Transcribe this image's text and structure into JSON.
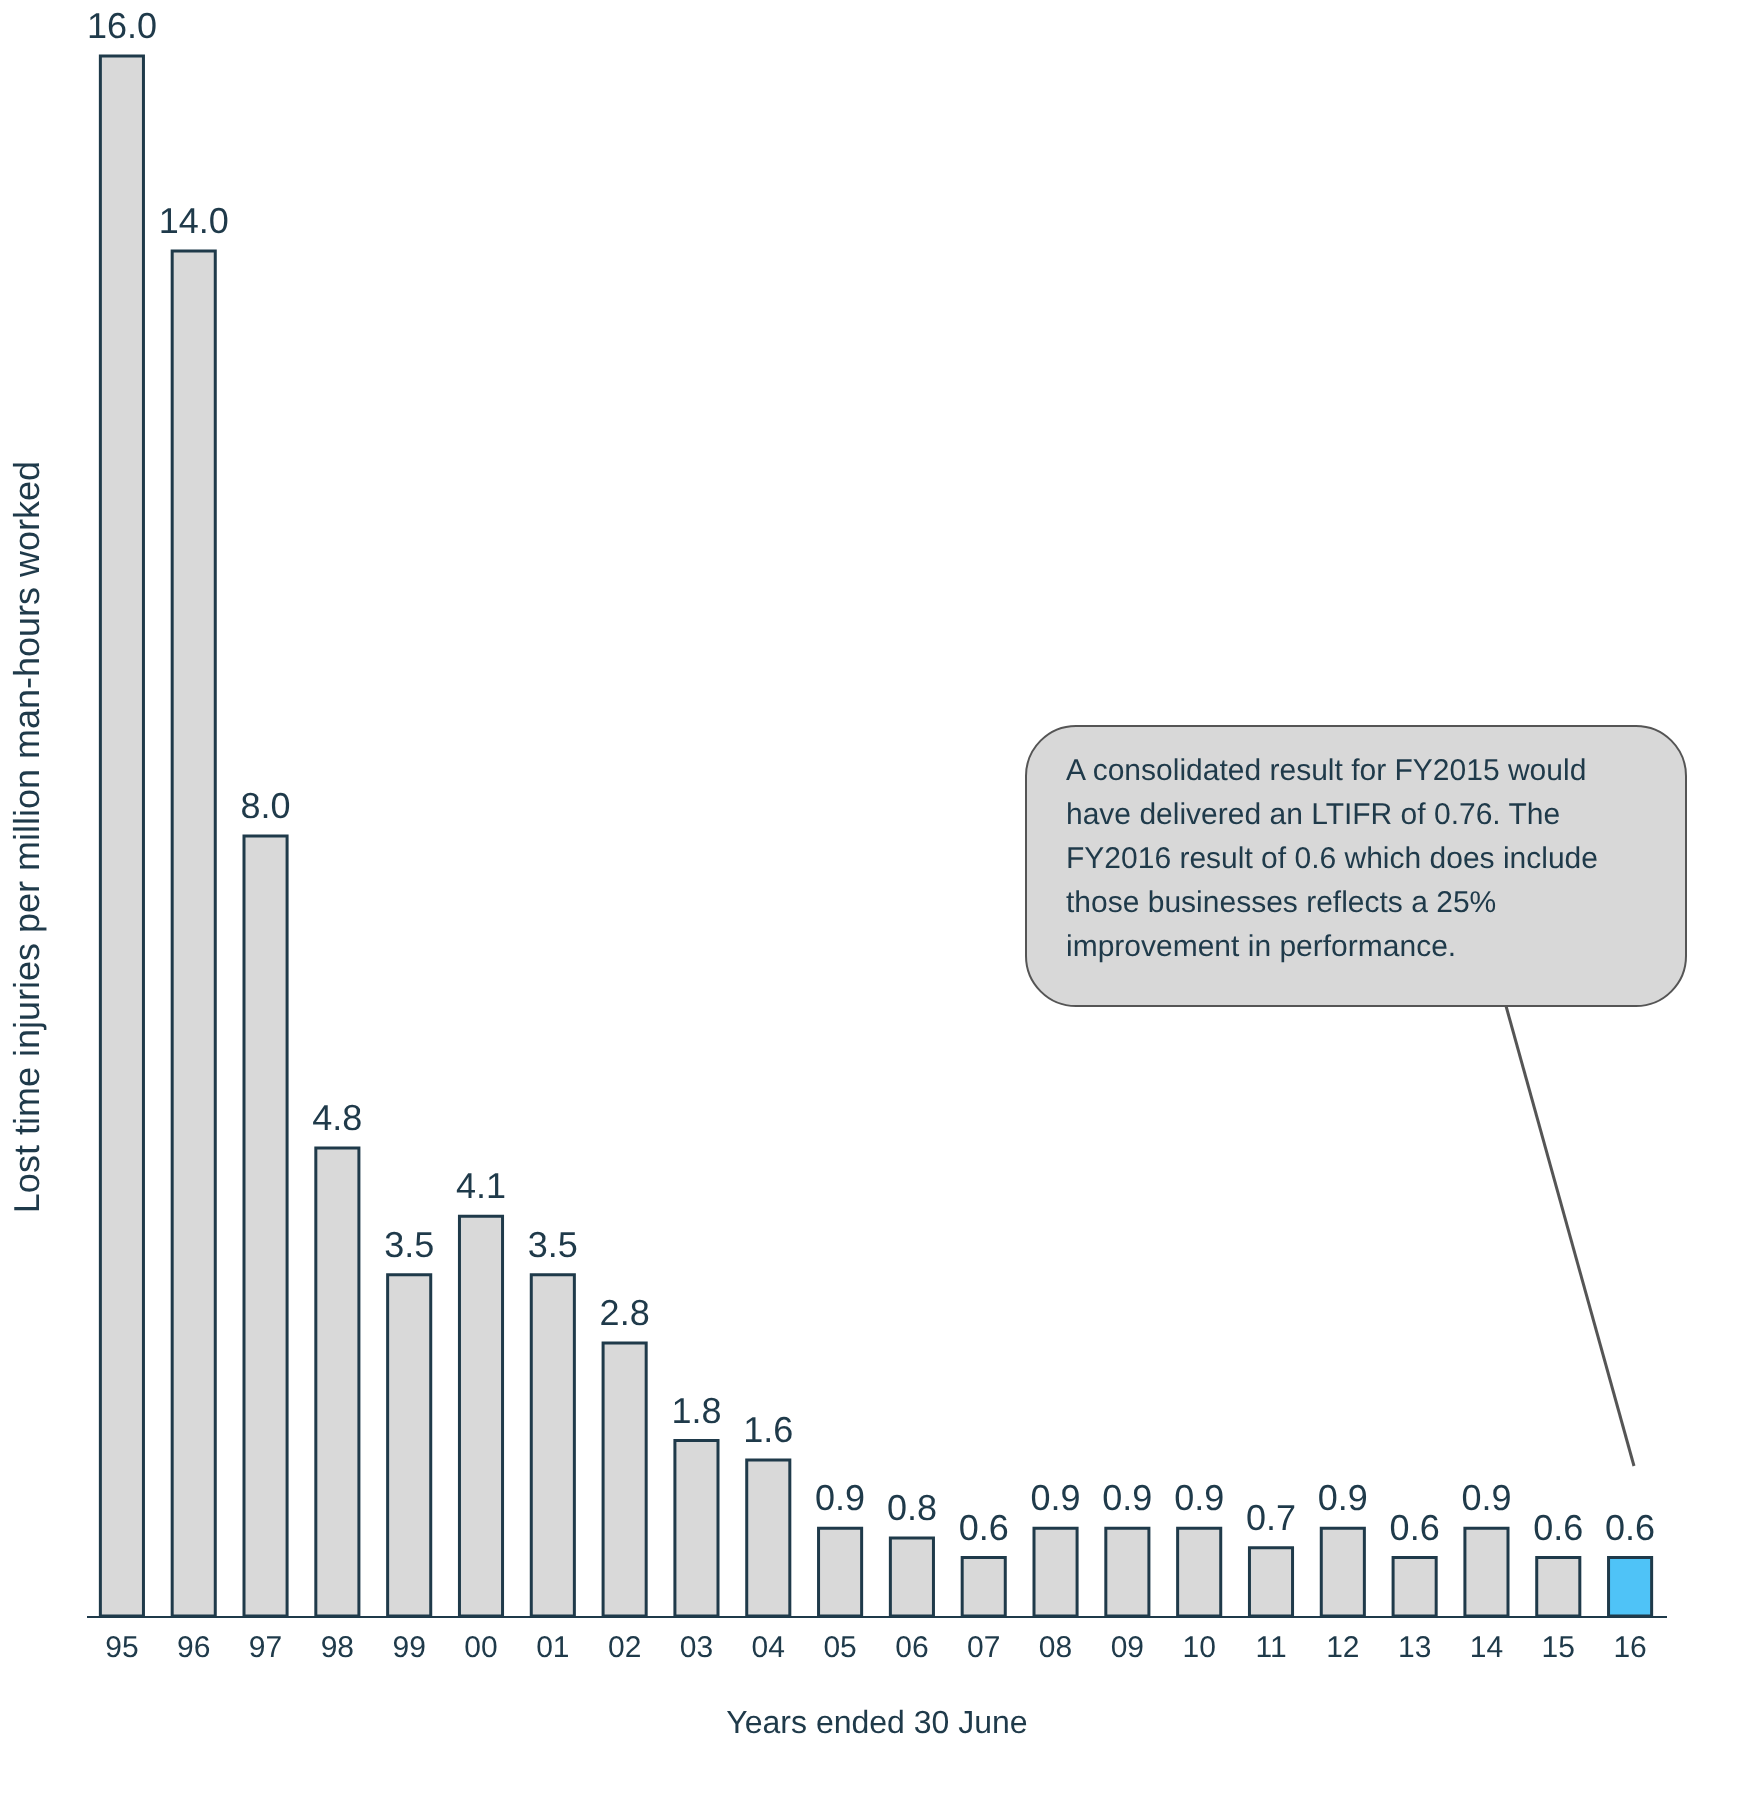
{
  "chart_data": {
    "type": "bar",
    "xlabel": "Years ended 30 June",
    "ylabel": "Lost time injuries per million man-hours worked",
    "categories": [
      "95",
      "96",
      "97",
      "98",
      "99",
      "00",
      "01",
      "02",
      "03",
      "04",
      "05",
      "06",
      "07",
      "08",
      "09",
      "10",
      "11",
      "12",
      "13",
      "14",
      "15",
      "16"
    ],
    "values": [
      16.0,
      14.0,
      8.0,
      4.8,
      3.5,
      4.1,
      3.5,
      2.8,
      1.8,
      1.6,
      0.9,
      0.8,
      0.6,
      0.9,
      0.9,
      0.9,
      0.7,
      0.9,
      0.6,
      0.9,
      0.6,
      0.6
    ],
    "value_labels": [
      "16.0",
      "14.0",
      "8.0",
      "4.8",
      "3.5",
      "4.1",
      "3.5",
      "2.8",
      "1.8",
      "1.6",
      "0.9",
      "0.8",
      "0.6",
      "0.9",
      "0.9",
      "0.9",
      "0.7",
      "0.9",
      "0.6",
      "0.9",
      "0.6",
      "0.6"
    ],
    "colors": [
      "#d9d9d9",
      "#d9d9d9",
      "#d9d9d9",
      "#d9d9d9",
      "#d9d9d9",
      "#d9d9d9",
      "#d9d9d9",
      "#d9d9d9",
      "#d9d9d9",
      "#d9d9d9",
      "#d9d9d9",
      "#d9d9d9",
      "#d9d9d9",
      "#d9d9d9",
      "#d9d9d9",
      "#d9d9d9",
      "#d9d9d9",
      "#d9d9d9",
      "#d9d9d9",
      "#d9d9d9",
      "#d9d9d9",
      "#4fc3f7"
    ],
    "annotations": [
      "A consolidated result for FY2015 would have delivered an LTIFR of 0.76.  The FY2016 result of 0.6 which does include those businesses reflects a 25% improvement in performance."
    ],
    "tick_labels": "x",
    "grid": false
  }
}
